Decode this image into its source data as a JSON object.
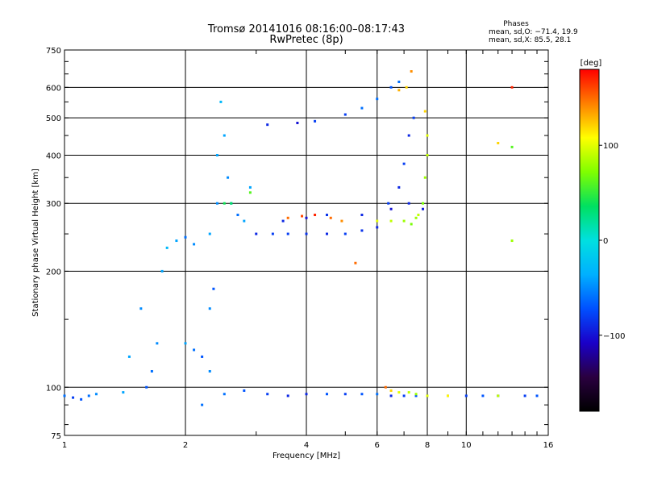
{
  "header": {
    "title_line1": "Tromsø 20141016 08:16:00–08:17:43",
    "title_line2": "RwPretec (8p)"
  },
  "info": {
    "line1": "Phases",
    "line2": "mean, sd,O: −71.4, 19.9",
    "line3": "mean, sd,X:  85.5, 28.1"
  },
  "colorbar": {
    "unit_label": "[deg]",
    "range": [
      -180,
      180
    ],
    "ticks": [
      {
        "value": 100,
        "label": "100"
      },
      {
        "value": 0,
        "label": "0"
      },
      {
        "value": -100,
        "label": "−100"
      }
    ],
    "stops": [
      "#000000",
      "#2a0040",
      "#1a00c8",
      "#0050ff",
      "#00b0ff",
      "#00e0e0",
      "#00e060",
      "#80ff00",
      "#ffff00",
      "#ff8000",
      "#ff0000"
    ]
  },
  "chart_data": {
    "type": "scatter",
    "title": "Tromsø 20141016 08:16:00–08:17:43",
    "subtitle": "RwPretec (8p)",
    "xlabel": "Frequency [MHz]",
    "ylabel": "Stationary phase Virtual Height [km]",
    "xscale": "log",
    "yscale": "log",
    "xlim": [
      1,
      16
    ],
    "ylim": [
      75,
      750
    ],
    "xticks": [
      {
        "value": 1,
        "label": "1"
      },
      {
        "value": 2,
        "label": "2"
      },
      {
        "value": 4,
        "label": "4"
      },
      {
        "value": 6,
        "label": "6"
      },
      {
        "value": 8,
        "label": "8"
      },
      {
        "value": 10,
        "label": "10"
      },
      {
        "value": 16,
        "label": "16"
      }
    ],
    "yticks": [
      {
        "value": 75,
        "label": "75"
      },
      {
        "value": 100,
        "label": "100"
      },
      {
        "value": 200,
        "label": "200"
      },
      {
        "value": 300,
        "label": "300"
      },
      {
        "value": 400,
        "label": "400"
      },
      {
        "value": 500,
        "label": "500"
      },
      {
        "value": 600,
        "label": "600"
      },
      {
        "value": 750,
        "label": "750"
      }
    ],
    "grid": true,
    "color_by": "phase [deg]",
    "series": [
      {
        "points": [
          [
            1.0,
            95,
            -60
          ],
          [
            1.05,
            94,
            -80
          ],
          [
            1.1,
            93,
            -70
          ],
          [
            1.15,
            95,
            -60
          ],
          [
            1.2,
            96,
            -50
          ],
          [
            1.4,
            97,
            -40
          ],
          [
            1.45,
            120,
            -40
          ],
          [
            1.55,
            160,
            -50
          ],
          [
            1.6,
            100,
            -70
          ],
          [
            1.65,
            110,
            -60
          ],
          [
            1.7,
            130,
            -50
          ],
          [
            1.75,
            200,
            -40
          ],
          [
            1.8,
            230,
            -30
          ],
          [
            1.9,
            240,
            -40
          ],
          [
            2.0,
            245,
            -60
          ],
          [
            2.1,
            235,
            -50
          ],
          [
            2.3,
            250,
            -40
          ],
          [
            2.4,
            300,
            -50
          ],
          [
            2.4,
            400,
            -40
          ],
          [
            2.45,
            550,
            -30
          ],
          [
            2.5,
            450,
            -40
          ],
          [
            2.55,
            350,
            -50
          ],
          [
            2.6,
            300,
            -40
          ],
          [
            2.7,
            280,
            -60
          ],
          [
            2.8,
            270,
            -40
          ],
          [
            2.9,
            330,
            -40
          ],
          [
            2.3,
            110,
            -50
          ],
          [
            2.2,
            120,
            -70
          ],
          [
            2.1,
            125,
            -60
          ],
          [
            2.0,
            130,
            -40
          ],
          [
            2.35,
            180,
            -70
          ],
          [
            2.3,
            160,
            -50
          ],
          [
            2.2,
            90,
            -60
          ],
          [
            2.5,
            96,
            -60
          ],
          [
            2.8,
            98,
            -70
          ],
          [
            3.0,
            250,
            -90
          ],
          [
            3.3,
            250,
            -80
          ],
          [
            3.6,
            250,
            -80
          ],
          [
            4.0,
            250,
            -85
          ],
          [
            4.5,
            250,
            -90
          ],
          [
            5.0,
            250,
            -80
          ],
          [
            5.5,
            255,
            -85
          ],
          [
            6.0,
            260,
            -90
          ],
          [
            6.4,
            300,
            -80
          ],
          [
            6.8,
            330,
            -90
          ],
          [
            7.0,
            380,
            -80
          ],
          [
            7.2,
            450,
            -90
          ],
          [
            7.4,
            500,
            -80
          ],
          [
            3.5,
            270,
            -90
          ],
          [
            4.0,
            275,
            -100
          ],
          [
            4.5,
            280,
            -85
          ],
          [
            5.5,
            280,
            -90
          ],
          [
            6.5,
            290,
            -100
          ],
          [
            7.2,
            300,
            -90
          ],
          [
            7.8,
            290,
            -95
          ],
          [
            3.2,
            480,
            -90
          ],
          [
            3.8,
            485,
            -100
          ],
          [
            4.2,
            490,
            -80
          ],
          [
            5.0,
            510,
            -80
          ],
          [
            5.5,
            530,
            -60
          ],
          [
            6.0,
            560,
            -60
          ],
          [
            6.5,
            600,
            -70
          ],
          [
            6.8,
            620,
            -60
          ],
          [
            3.2,
            96,
            -80
          ],
          [
            3.6,
            95,
            -90
          ],
          [
            4.0,
            96,
            -90
          ],
          [
            4.5,
            96,
            -70
          ],
          [
            5.0,
            96,
            -80
          ],
          [
            5.5,
            96,
            -70
          ],
          [
            6.0,
            96,
            -60
          ],
          [
            6.5,
            95,
            -90
          ],
          [
            7.0,
            95,
            -80
          ],
          [
            7.5,
            95,
            -70
          ],
          [
            8.0,
            95,
            -80
          ],
          [
            9.0,
            95,
            -90
          ],
          [
            10.0,
            95,
            -80
          ],
          [
            11.0,
            95,
            -70
          ],
          [
            12.0,
            95,
            -90
          ],
          [
            14.0,
            95,
            -80
          ],
          [
            15.0,
            95,
            -70
          ]
        ]
      },
      {
        "points": [
          [
            3.6,
            275,
            150
          ],
          [
            3.9,
            278,
            160
          ],
          [
            4.2,
            280,
            170
          ],
          [
            4.6,
            275,
            150
          ],
          [
            4.9,
            270,
            140
          ],
          [
            6.0,
            270,
            100
          ],
          [
            6.5,
            270,
            90
          ],
          [
            7.0,
            270,
            80
          ],
          [
            7.5,
            275,
            80
          ],
          [
            7.8,
            300,
            70
          ],
          [
            7.9,
            350,
            80
          ],
          [
            8.0,
            400,
            90
          ],
          [
            8.0,
            450,
            100
          ],
          [
            7.9,
            520,
            120
          ],
          [
            7.6,
            280,
            90
          ],
          [
            7.3,
            265,
            70
          ],
          [
            6.3,
            100,
            150
          ],
          [
            6.5,
            98,
            120
          ],
          [
            6.8,
            97,
            100
          ],
          [
            7.2,
            97,
            90
          ],
          [
            7.5,
            96,
            80
          ],
          [
            8.0,
            95,
            100
          ],
          [
            9.0,
            95,
            110
          ],
          [
            12.0,
            95,
            90
          ],
          [
            6.8,
            590,
            130
          ],
          [
            7.3,
            660,
            140
          ],
          [
            7.1,
            600,
            120
          ],
          [
            13.0,
            600,
            170
          ],
          [
            12.0,
            430,
            120
          ],
          [
            13.0,
            420,
            60
          ],
          [
            5.3,
            210,
            150
          ],
          [
            13.0,
            240,
            80
          ],
          [
            2.5,
            300,
            40
          ],
          [
            2.9,
            320,
            60
          ],
          [
            2.6,
            300,
            35
          ]
        ]
      }
    ]
  }
}
